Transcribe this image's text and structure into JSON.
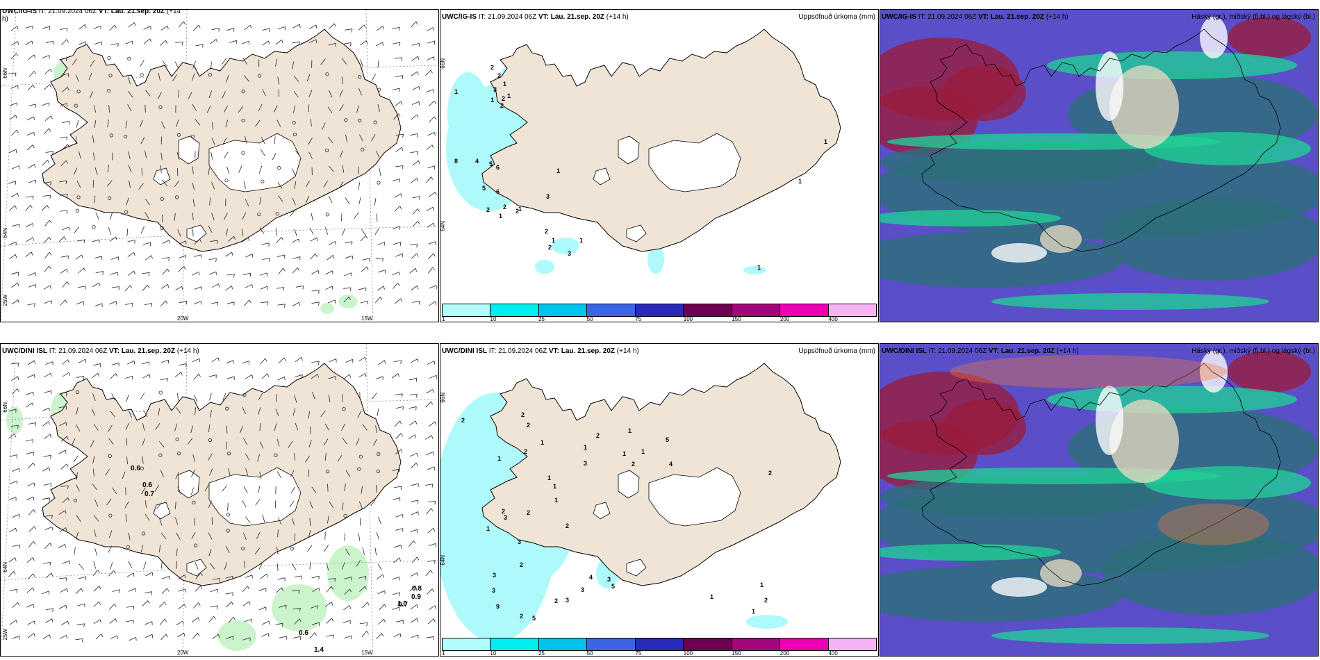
{
  "rows": [
    {
      "wind": {
        "model": "UWC/IG-IS",
        "it_text": "IT: 21.09.2024 06Z",
        "vt_label": "VT:",
        "vt_value": "Lau. 21.sep. 20Z",
        "lead": "(+14",
        "lead_wrap": "h)",
        "lat_labels": [
          "66N",
          "64N",
          "25W"
        ],
        "lon_labels": [
          "20W",
          "15W"
        ],
        "values": []
      },
      "precip": {
        "model": "UWC/IG-IS",
        "it_text": "IT: 21.09.2024 06Z",
        "vt_label": "VT:",
        "vt_value": "Lau. 21.sep. 20Z",
        "lead": "(+14 h)",
        "right_label": "Uppsöfnuð úrkoma (mm)",
        "lat_labels": [
          "66N",
          "64N"
        ],
        "values": [
          "1",
          "2",
          "2",
          "1",
          "3",
          "2",
          "1",
          "2",
          "1",
          "8",
          "4",
          "5",
          "6",
          "5",
          "6",
          "2",
          "2",
          "1",
          "2",
          "1",
          "3",
          "2",
          "1",
          "2",
          "3",
          "1",
          "1",
          "1",
          "1",
          "1"
        ]
      },
      "clouds": {
        "model": "UWC/IG-IS",
        "it_text": "IT: 21.09.2024 06Z",
        "vt_label": "VT:",
        "vt_value": "Lau. 21.sep. 20Z",
        "lead": "(+14 h)",
        "right_label": "Háský (gr.), miðský (fj.bl.) og lágský (bl.)"
      }
    },
    {
      "wind": {
        "model": "UWC/DINI ISL",
        "it_text": "IT: 21.09.2024 06Z",
        "vt_label": "VT:",
        "vt_value": "Lau. 21.sep. 20Z",
        "lead": "(+14 h)",
        "lead_wrap": "",
        "lat_labels": [
          "66N",
          "64N",
          "25W"
        ],
        "lon_labels": [
          "20W",
          "15W"
        ],
        "values": [
          "0.6",
          "0.6",
          "0.7",
          "0.7",
          "0.8",
          "0.9",
          "1.0",
          "0.6",
          "1.4"
        ]
      },
      "precip": {
        "model": "UWC/DINI ISL",
        "it_text": "IT: 21.09.2024 06Z",
        "vt_label": "VT:",
        "vt_value": "Lau. 21.sep. 20Z",
        "lead": "(+14 h)",
        "right_label": "Uppsöfnuð úrkoma (mm)",
        "lat_labels": [
          "66N",
          "64N"
        ],
        "values": [
          "2",
          "2",
          "2",
          "1",
          "1",
          "2",
          "3",
          "1",
          "1",
          "1",
          "2",
          "1",
          "2",
          "2",
          "3",
          "2",
          "1",
          "3",
          "2",
          "3",
          "3",
          "3",
          "2",
          "9",
          "2",
          "5",
          "5",
          "4",
          "3",
          "3",
          "5",
          "4",
          "1",
          "1",
          "1",
          "2",
          "2",
          "1",
          "1",
          "1",
          "2",
          "2"
        ]
      },
      "clouds": {
        "model": "UWC/DINI ISL",
        "it_text": "IT: 21.09.2024 06Z",
        "vt_label": "VT:",
        "vt_value": "Lau. 21.sep. 20Z",
        "lead": "(+14 h)",
        "right_label": "Háský (gr.), miðský (fj.bl.) og lágský (bl.)"
      }
    }
  ],
  "precip_legend": {
    "colors": [
      "#b2fcfc",
      "#00eeee",
      "#00c4ee",
      "#3a66e6",
      "#2a2ab8",
      "#6e0050",
      "#a2087a",
      "#ee00b4",
      "#f4b4f4"
    ],
    "ticks": [
      "1",
      "10",
      "25",
      "50",
      "75",
      "100",
      "150",
      "200",
      "400"
    ]
  },
  "colors": {
    "land": "#efe4d6",
    "coast": "#000000",
    "precip_light": "#aefafa",
    "wind_green": "#c6f3c6",
    "cloud_high": "#8a8a8a",
    "cloud_mid": "#3f5a8a",
    "cloud_low": "#2222a0"
  }
}
